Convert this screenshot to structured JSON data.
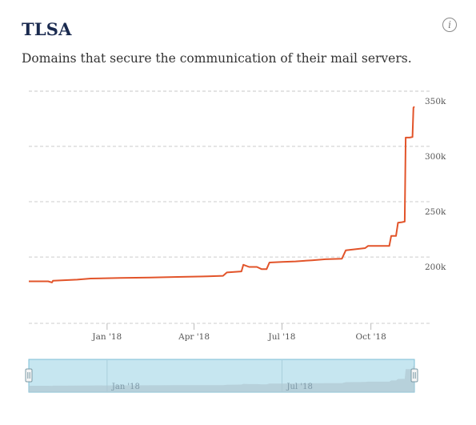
{
  "header": {
    "title": "TLSA",
    "subtitle": "Domains that secure the communication of their mail servers.",
    "info_glyph": "i",
    "info_icon": "info-icon"
  },
  "colors": {
    "line": "#e2542a",
    "grid": "#cccccc",
    "navigator_fill": "#c6e6f0",
    "navigator_border": "#7fbfd6",
    "navigator_area": "#b0c8d1"
  },
  "chart_data": {
    "type": "line",
    "title": "TLSA",
    "subtitle": "Domains that secure the communication of their mail servers.",
    "xlabel": "",
    "ylabel": "",
    "x_type": "date",
    "xlim": [
      "2017-10-12",
      "2018-11-15"
    ],
    "ylim": [
      140000,
      360000
    ],
    "y_ticks": [
      200000,
      250000,
      300000,
      350000
    ],
    "y_tick_labels": [
      "200k",
      "250k",
      "300k",
      "350k"
    ],
    "x_ticks": [
      "2018-01-01",
      "2018-04-01",
      "2018-07-01",
      "2018-10-01"
    ],
    "x_tick_labels": [
      "Jan '18",
      "Apr '18",
      "Jul '18",
      "Oct '18"
    ],
    "grid": true,
    "legend": "none",
    "series": [
      {
        "points": [
          [
            "2017-10-12",
            178000
          ],
          [
            "2017-11-01",
            178000
          ],
          [
            "2017-11-05",
            177000
          ],
          [
            "2017-11-06",
            178500
          ],
          [
            "2017-12-01",
            179500
          ],
          [
            "2017-12-15",
            180500
          ],
          [
            "2018-01-15",
            181000
          ],
          [
            "2018-02-15",
            181500
          ],
          [
            "2018-03-15",
            182000
          ],
          [
            "2018-04-15",
            182500
          ],
          [
            "2018-05-01",
            183000
          ],
          [
            "2018-05-05",
            186000
          ],
          [
            "2018-05-20",
            187000
          ],
          [
            "2018-05-22",
            193000
          ],
          [
            "2018-05-28",
            191000
          ],
          [
            "2018-06-05",
            191000
          ],
          [
            "2018-06-10",
            189000
          ],
          [
            "2018-06-15",
            189000
          ],
          [
            "2018-06-18",
            195000
          ],
          [
            "2018-07-01",
            195500
          ],
          [
            "2018-07-15",
            196000
          ],
          [
            "2018-08-01",
            197000
          ],
          [
            "2018-08-15",
            198000
          ],
          [
            "2018-09-01",
            198500
          ],
          [
            "2018-09-05",
            206000
          ],
          [
            "2018-09-25",
            208000
          ],
          [
            "2018-09-28",
            210000
          ],
          [
            "2018-10-15",
            210000
          ],
          [
            "2018-10-20",
            210000
          ],
          [
            "2018-10-22",
            219000
          ],
          [
            "2018-10-27",
            219000
          ],
          [
            "2018-10-29",
            231000
          ],
          [
            "2018-11-02",
            231500
          ],
          [
            "2018-11-05",
            232000
          ],
          [
            "2018-11-06",
            308000
          ],
          [
            "2018-11-10",
            308000
          ],
          [
            "2018-11-13",
            308500
          ],
          [
            "2018-11-14",
            335000
          ],
          [
            "2018-11-15",
            336000
          ]
        ]
      }
    ]
  },
  "navigator": {
    "labels": [
      "Jan '18",
      "Jul '18"
    ],
    "label_dates": [
      "2018-01-01",
      "2018-07-01"
    ],
    "left_handle_icon": "grip-icon",
    "right_handle_icon": "grip-icon"
  }
}
